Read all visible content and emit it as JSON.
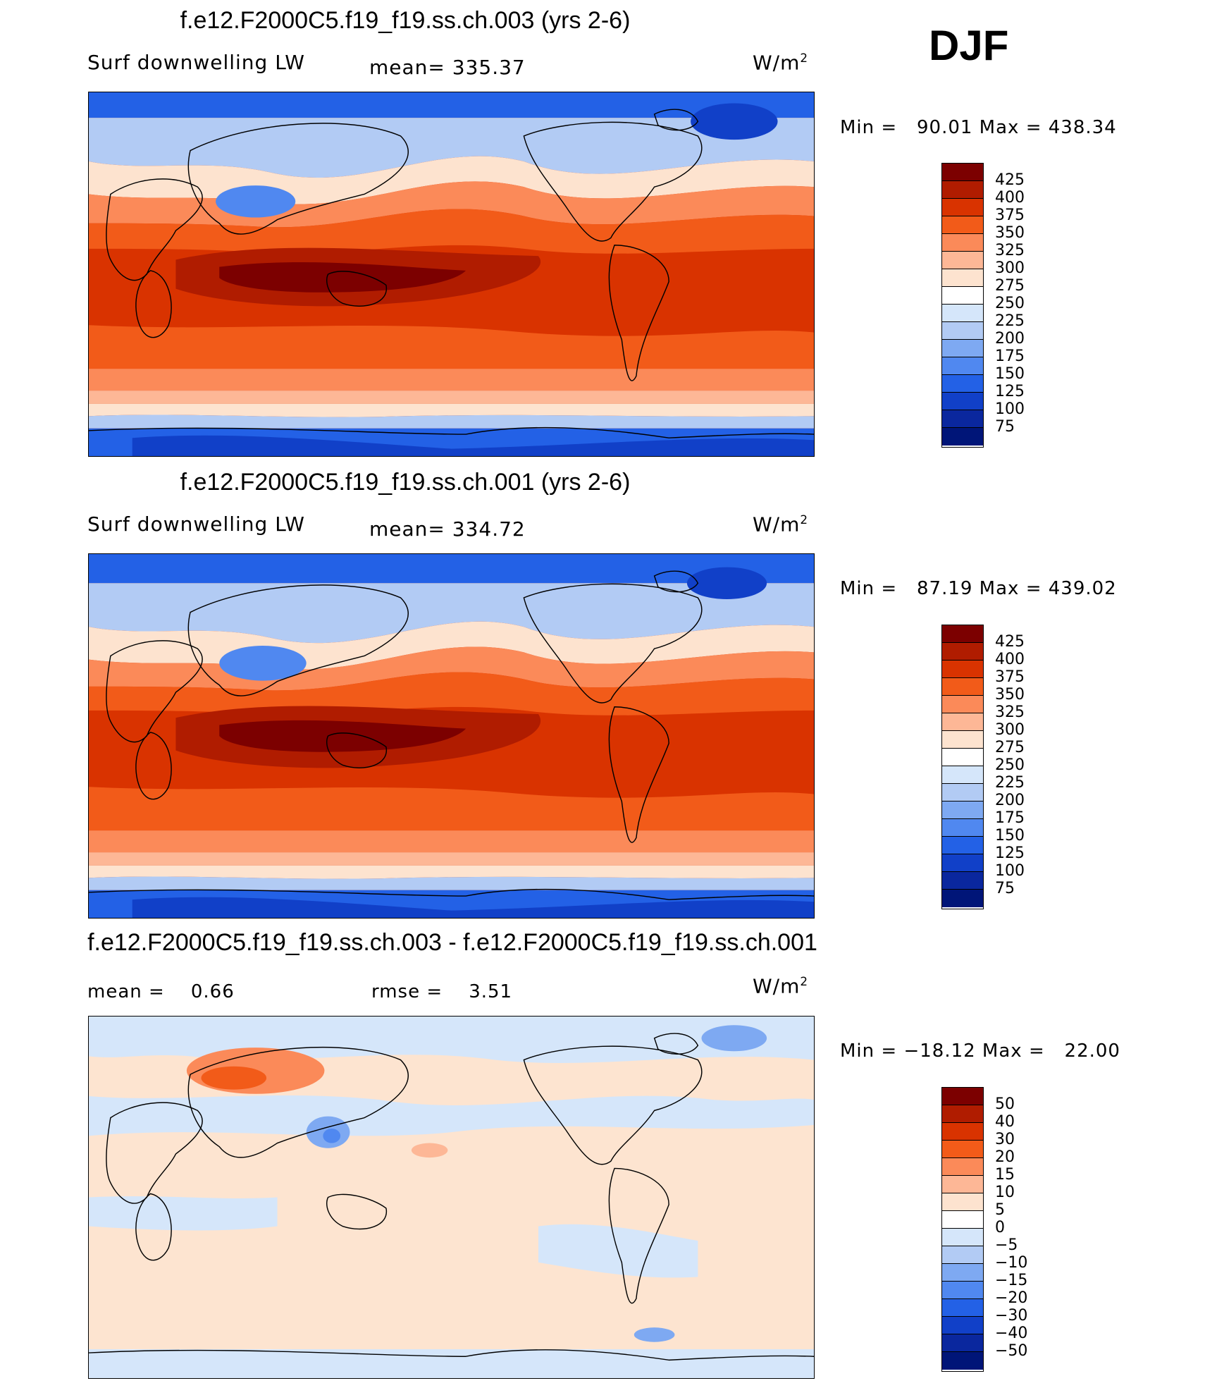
{
  "season": "DJF",
  "panels": [
    {
      "title": "f.e12.F2000C5.f19_f19.ss.ch.003 (yrs 2-6)",
      "left_label": "Surf downwelling LW",
      "center_label": "mean= 335.37",
      "units_base": "W/m",
      "units_exp": "2",
      "minmax": "Min =   90.01 Max = 438.34",
      "colorbar_ticks": [
        "425",
        "400",
        "375",
        "350",
        "325",
        "300",
        "275",
        "250",
        "225",
        "200",
        "175",
        "150",
        "125",
        "100",
        "75"
      ],
      "palette": [
        "#7c0000",
        "#b01c00",
        "#d93300",
        "#f25b19",
        "#fb8a59",
        "#fdb796",
        "#fde3cf",
        "#ffffff",
        "#d5e6fa",
        "#b2cbf4",
        "#7ea9f2",
        "#5088f0",
        "#2361e6",
        "#1140c8",
        "#0a279e",
        "#001578"
      ]
    },
    {
      "title": "f.e12.F2000C5.f19_f19.ss.ch.001 (yrs 2-6)",
      "left_label": "Surf downwelling LW",
      "center_label": "mean= 334.72",
      "units_base": "W/m",
      "units_exp": "2",
      "minmax": "Min =   87.19 Max = 439.02",
      "colorbar_ticks": [
        "425",
        "400",
        "375",
        "350",
        "325",
        "300",
        "275",
        "250",
        "225",
        "200",
        "175",
        "150",
        "125",
        "100",
        "75"
      ],
      "palette": [
        "#7c0000",
        "#b01c00",
        "#d93300",
        "#f25b19",
        "#fb8a59",
        "#fdb796",
        "#fde3cf",
        "#ffffff",
        "#d5e6fa",
        "#b2cbf4",
        "#7ea9f2",
        "#5088f0",
        "#2361e6",
        "#1140c8",
        "#0a279e",
        "#001578"
      ]
    },
    {
      "title": "f.e12.F2000C5.f19_f19.ss.ch.003 - f.e12.F2000C5.f19_f19.ss.ch.001",
      "left_label": "mean =    0.66",
      "center_label": "rmse =    3.51",
      "units_base": "W/m",
      "units_exp": "2",
      "minmax": "Min = −18.12 Max =   22.00",
      "colorbar_ticks": [
        "50",
        "40",
        "30",
        "20",
        "15",
        "10",
        "5",
        "0",
        "−5",
        "−10",
        "−15",
        "−20",
        "−30",
        "−40",
        "−50"
      ],
      "palette": [
        "#7c0000",
        "#b01c00",
        "#d93300",
        "#f25b19",
        "#fb8a59",
        "#fdb796",
        "#fde3cf",
        "#ffffff",
        "#d5e6fa",
        "#b2cbf4",
        "#7ea9f2",
        "#5088f0",
        "#2361e6",
        "#1140c8",
        "#0a279e",
        "#001578"
      ]
    }
  ],
  "colors": {
    "diff_background": "#fde4d0",
    "ocean_cold": "#2361e6"
  }
}
